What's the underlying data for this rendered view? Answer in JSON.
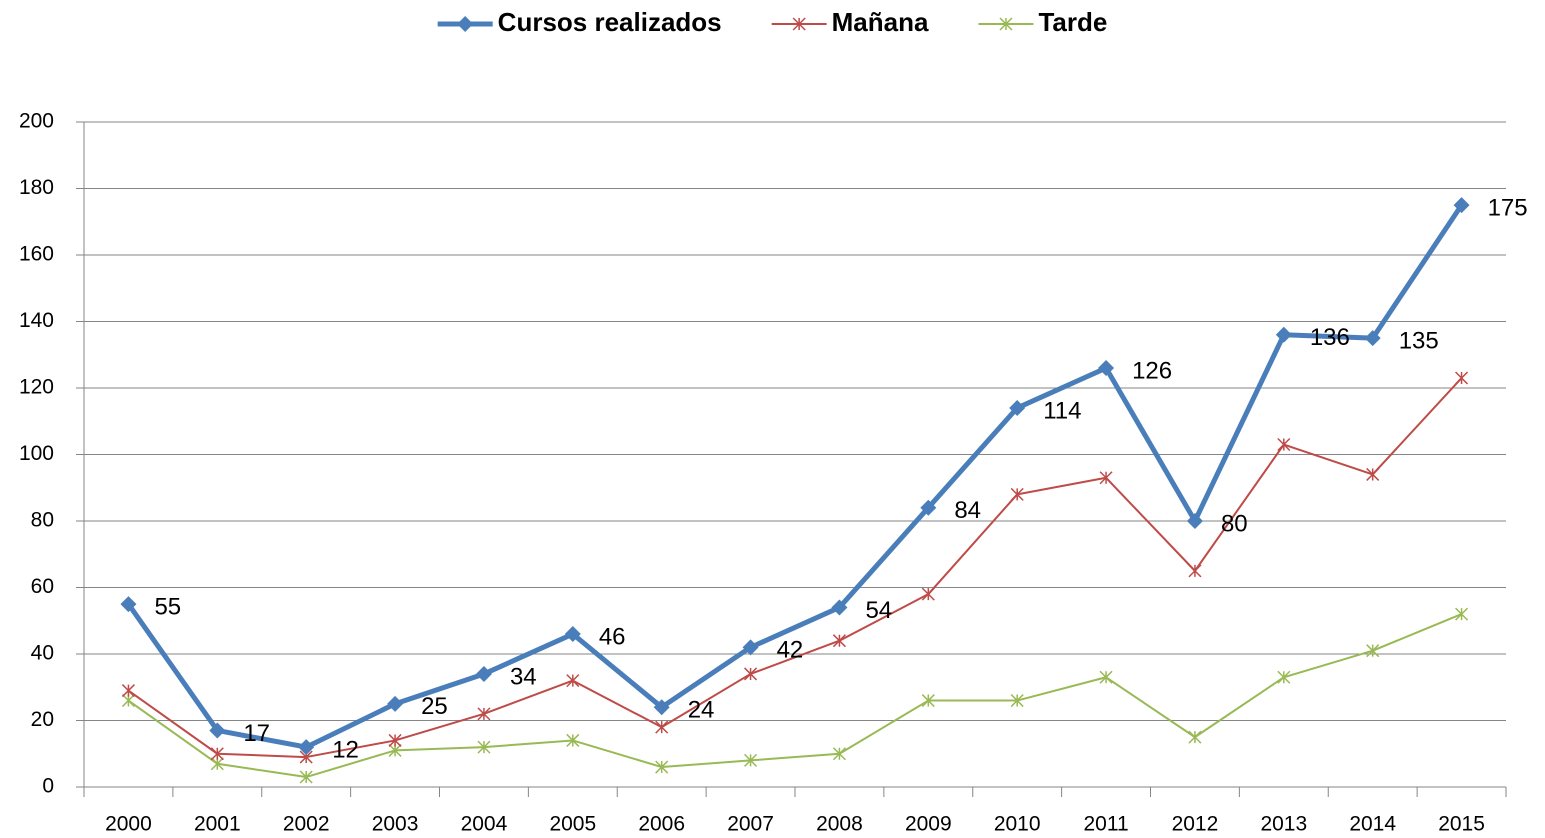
{
  "chart_data": {
    "type": "line",
    "categories": [
      "2000",
      "2001",
      "2002",
      "2003",
      "2004",
      "2005",
      "2006",
      "2007",
      "2008",
      "2009",
      "2010",
      "2011",
      "2012",
      "2013",
      "2014",
      "2015"
    ],
    "series": [
      {
        "name": "Cursos realizados",
        "color": "#4a7ebb",
        "marker": "diamond",
        "width": 5,
        "data_labels": true,
        "values": [
          55,
          17,
          12,
          25,
          34,
          46,
          24,
          42,
          54,
          84,
          114,
          126,
          80,
          136,
          135,
          175
        ]
      },
      {
        "name": "Mañana",
        "color": "#be4b48",
        "marker": "asterisk",
        "width": 2,
        "data_labels": false,
        "values": [
          29,
          10,
          9,
          14,
          22,
          32,
          18,
          34,
          44,
          58,
          88,
          93,
          65,
          103,
          94,
          123
        ]
      },
      {
        "name": "Tarde",
        "color": "#98b954",
        "marker": "asterisk",
        "width": 2,
        "data_labels": false,
        "values": [
          26,
          7,
          3,
          11,
          12,
          14,
          6,
          8,
          10,
          26,
          26,
          33,
          15,
          33,
          41,
          52
        ]
      }
    ],
    "ylim": [
      0,
      200
    ],
    "yticks": [
      0,
      20,
      40,
      60,
      80,
      100,
      120,
      140,
      160,
      180,
      200
    ],
    "grid": true,
    "legend": "top"
  }
}
